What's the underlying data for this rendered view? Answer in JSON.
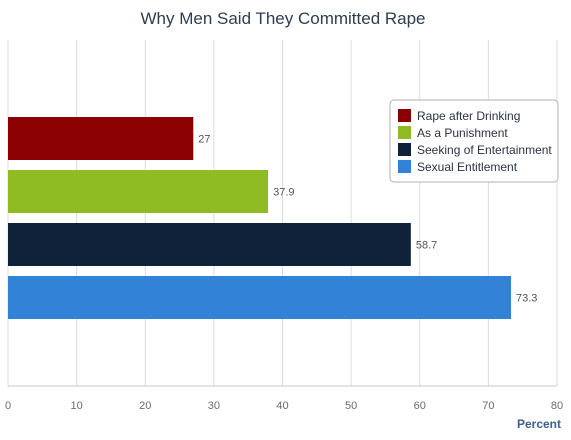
{
  "chart_data": {
    "type": "bar",
    "orientation": "horizontal",
    "title": "Why Men Said They Committed Rape",
    "xlabel": "Percent",
    "ylabel": "",
    "xlim": [
      0,
      80
    ],
    "ticks": [
      "0",
      "10",
      "20",
      "30",
      "40",
      "50",
      "60",
      "70",
      "80"
    ],
    "grid": true,
    "legend_position": "top-right",
    "series": [
      {
        "name": "Rape after Drinking",
        "value": 27,
        "label": "27",
        "color": "#8b0000"
      },
      {
        "name": "As a Punishment",
        "value": 37.9,
        "label": "37.9",
        "color": "#8fbb23"
      },
      {
        "name": "Seeking of Entertainment",
        "value": 58.7,
        "label": "58.7",
        "color": "#10223a"
      },
      {
        "name": "Sexual Entitlement",
        "value": 73.3,
        "label": "73.3",
        "color": "#3282d8"
      }
    ]
  }
}
